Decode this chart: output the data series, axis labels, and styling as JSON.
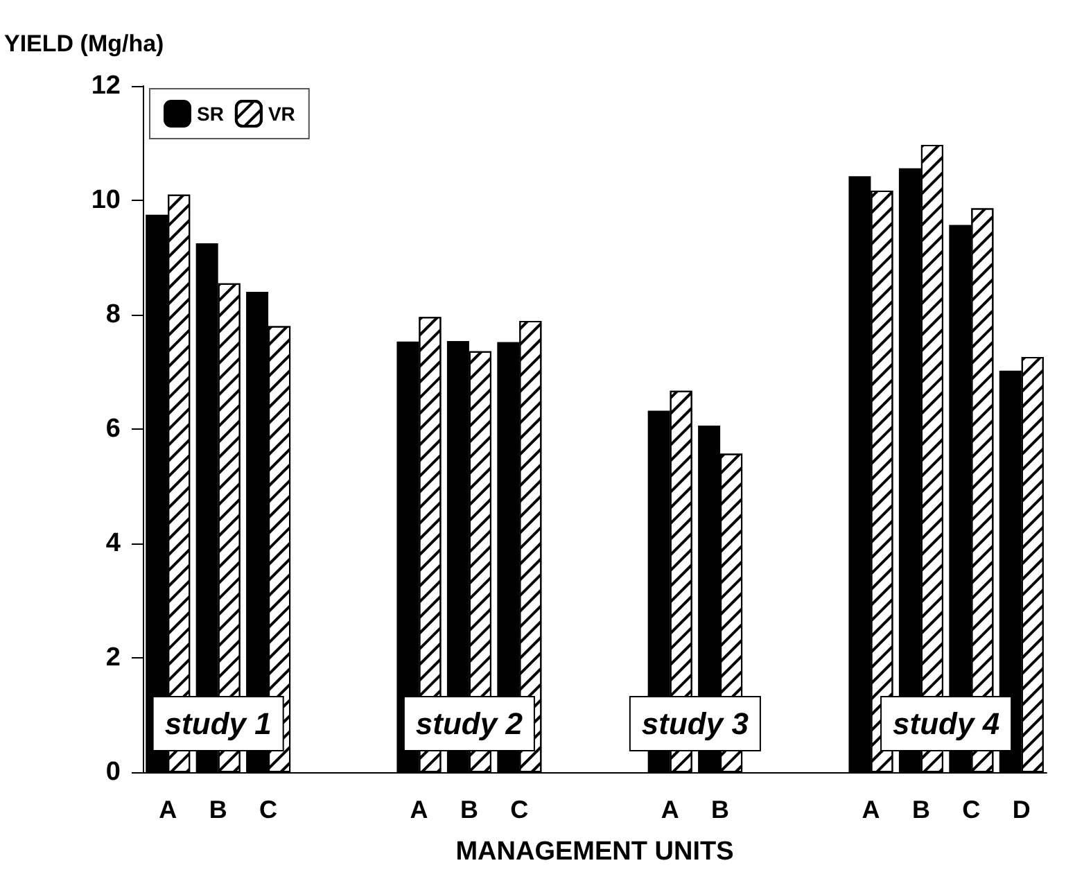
{
  "chart_data": {
    "type": "bar",
    "ylabel": "YIELD (Mg/ha)",
    "xlabel": "MANAGEMENT UNITS",
    "categories": [
      "A",
      "B",
      "C",
      null,
      null,
      "A",
      "B",
      "C",
      null,
      null,
      "A",
      "B",
      null,
      null,
      "A",
      "B",
      "C",
      "D"
    ],
    "series": [
      {
        "name": "SR",
        "color": "#000000",
        "values": [
          9.75,
          9.25,
          8.4,
          null,
          null,
          7.53,
          7.54,
          7.52,
          null,
          null,
          6.32,
          6.06,
          null,
          null,
          10.42,
          10.56,
          9.57,
          7.02
        ]
      },
      {
        "name": "VR",
        "color": "#ffffff",
        "values": [
          10.1,
          8.55,
          7.8,
          null,
          null,
          7.96,
          7.36,
          7.89,
          null,
          null,
          6.67,
          5.57,
          null,
          null,
          10.17,
          10.97,
          9.86,
          7.26
        ]
      }
    ],
    "annotations": [
      "study 1",
      "study 2",
      "study 3",
      "study 4"
    ],
    "ylim": [
      0,
      12
    ],
    "yticks": [
      0,
      2,
      4,
      6,
      8,
      10,
      12
    ],
    "grid": false,
    "legend": "top left"
  }
}
